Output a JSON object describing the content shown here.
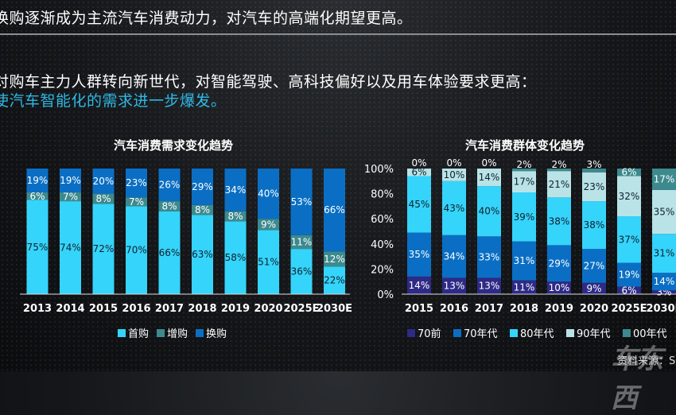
{
  "text": {
    "line1": "换购逐渐成为主流汽车消费动力，对汽车的高端化期望更高。",
    "line2": "对购车主力人群转向新世代，对智能驾驶、高科技偏好以及用车体验要求更高：",
    "line3": "使汽车智能化的需求进一步爆发。",
    "watermark": "车东西",
    "source": "资料来源：SI"
  },
  "colors": {
    "highlight": "#2fb9e6"
  },
  "chart_data": [
    {
      "type": "bar",
      "stacked": true,
      "percent": true,
      "title": "汽车消费需求变化趋势",
      "categories": [
        "2013",
        "2014",
        "2015",
        "2016",
        "2017",
        "2018",
        "2019",
        "2020",
        "2025E",
        "2030E"
      ],
      "yticks": [
        "0%",
        "20%",
        "40%",
        "60%",
        "80%",
        "100%"
      ],
      "ylim": [
        0,
        100
      ],
      "legend_position": "bottom",
      "series": [
        {
          "name": "首购",
          "color": "#35d4fb",
          "label_color": "#10202c",
          "values": [
            75,
            74,
            72,
            70,
            66,
            63,
            58,
            51,
            36,
            22
          ]
        },
        {
          "name": "增购",
          "color": "#3d8a8e",
          "label_color": "#ffffff",
          "values": [
            6,
            7,
            8,
            7,
            8,
            8,
            8,
            9,
            11,
            12
          ]
        },
        {
          "name": "换购",
          "color": "#0a6fc4",
          "label_color": "#ffffff",
          "values": [
            19,
            19,
            20,
            23,
            26,
            29,
            34,
            40,
            53,
            66
          ]
        }
      ]
    },
    {
      "type": "bar",
      "stacked": true,
      "percent": true,
      "title": "汽车消费群体变化趋势",
      "categories": [
        "2015",
        "2016",
        "2017",
        "2018",
        "2019",
        "2020",
        "2025E",
        "2030E"
      ],
      "yticks": [
        "0%",
        "20%",
        "40%",
        "60%",
        "80%",
        "100%"
      ],
      "ylim": [
        0,
        100
      ],
      "legend_position": "bottom",
      "series": [
        {
          "name": "70前",
          "color": "#2e2a86",
          "label_color": "#ffffff",
          "values": [
            14,
            13,
            13,
            11,
            10,
            9,
            6,
            3
          ]
        },
        {
          "name": "70年代",
          "color": "#0a6fc4",
          "label_color": "#ffffff",
          "values": [
            35,
            34,
            33,
            31,
            29,
            27,
            19,
            14
          ]
        },
        {
          "name": "80年代",
          "color": "#35d4fb",
          "label_color": "#10202c",
          "values": [
            45,
            43,
            40,
            39,
            38,
            38,
            37,
            31
          ]
        },
        {
          "name": "90年代",
          "color": "#b9e3e6",
          "label_color": "#10202c",
          "values": [
            6,
            10,
            14,
            17,
            21,
            23,
            32,
            35
          ]
        },
        {
          "name": "00年代",
          "color": "#3d8a8e",
          "label_color": "#ffffff",
          "values": [
            0,
            0,
            0,
            2,
            2,
            3,
            6,
            17
          ]
        }
      ]
    }
  ]
}
